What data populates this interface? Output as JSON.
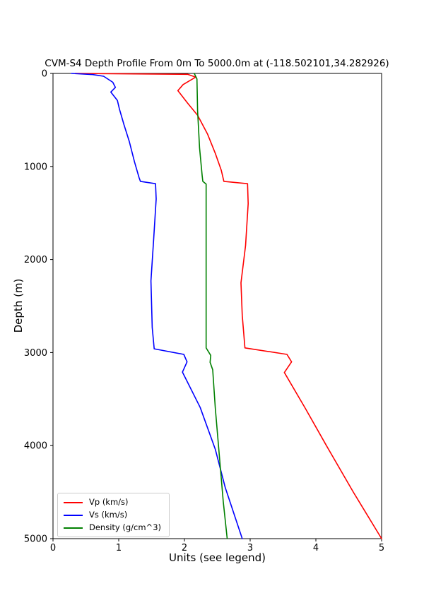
{
  "chart_data": {
    "type": "line",
    "title": "CVM-S4 Depth Profile From 0m To 5000.0m at (-118.502101,34.282926)",
    "xlabel": "Units (see legend)",
    "ylabel": "Depth (m)",
    "x_range": [
      0,
      5
    ],
    "depth_range": [
      0,
      5000
    ],
    "y_axis_inverted": true,
    "grid": false,
    "legend_position": "lower left",
    "x_ticks": [
      "0",
      "1",
      "2",
      "3",
      "4",
      "5"
    ],
    "y_ticks": [
      "0",
      "1000",
      "2000",
      "3000",
      "4000",
      "5000"
    ],
    "axis_color": "#000000",
    "series": [
      {
        "name": "Vp (km/s)",
        "color": "#ff0000",
        "points_format": "[value, depth_m]",
        "points": [
          [
            0.34,
            0
          ],
          [
            2.05,
            10
          ],
          [
            2.17,
            40
          ],
          [
            1.98,
            120
          ],
          [
            1.9,
            185
          ],
          [
            2.05,
            320
          ],
          [
            2.2,
            450
          ],
          [
            2.35,
            650
          ],
          [
            2.47,
            860
          ],
          [
            2.56,
            1040
          ],
          [
            2.6,
            1160
          ],
          [
            2.96,
            1185
          ],
          [
            2.97,
            1400
          ],
          [
            2.93,
            1850
          ],
          [
            2.86,
            2250
          ],
          [
            2.88,
            2600
          ],
          [
            2.92,
            2950
          ],
          [
            3.56,
            3020
          ],
          [
            3.63,
            3100
          ],
          [
            3.52,
            3215
          ],
          [
            3.84,
            3600
          ],
          [
            4.16,
            4000
          ],
          [
            4.57,
            4500
          ],
          [
            5.0,
            5000
          ]
        ]
      },
      {
        "name": "Vs (km/s)",
        "color": "#0000ff",
        "points_format": "[value, depth_m]",
        "points": [
          [
            0.28,
            0
          ],
          [
            0.6,
            12
          ],
          [
            0.77,
            30
          ],
          [
            0.91,
            95
          ],
          [
            0.95,
            150
          ],
          [
            0.88,
            200
          ],
          [
            0.98,
            290
          ],
          [
            1.01,
            380
          ],
          [
            1.08,
            550
          ],
          [
            1.16,
            730
          ],
          [
            1.24,
            950
          ],
          [
            1.31,
            1120
          ],
          [
            1.33,
            1160
          ],
          [
            1.56,
            1185
          ],
          [
            1.57,
            1350
          ],
          [
            1.53,
            1800
          ],
          [
            1.49,
            2230
          ],
          [
            1.51,
            2730
          ],
          [
            1.54,
            2960
          ],
          [
            1.99,
            3020
          ],
          [
            2.04,
            3100
          ],
          [
            1.97,
            3210
          ],
          [
            2.24,
            3590
          ],
          [
            2.47,
            4040
          ],
          [
            2.62,
            4450
          ],
          [
            2.88,
            5000
          ]
        ]
      },
      {
        "name": "Density (g/cm^3)",
        "color": "#008000",
        "points_format": "[value, depth_m]",
        "points": [
          [
            2.15,
            0
          ],
          [
            2.19,
            60
          ],
          [
            2.2,
            400
          ],
          [
            2.23,
            800
          ],
          [
            2.27,
            1100
          ],
          [
            2.28,
            1160
          ],
          [
            2.33,
            1190
          ],
          [
            2.33,
            2950
          ],
          [
            2.4,
            3030
          ],
          [
            2.39,
            3105
          ],
          [
            2.43,
            3185
          ],
          [
            2.47,
            3600
          ],
          [
            2.53,
            4100
          ],
          [
            2.59,
            4600
          ],
          [
            2.65,
            5000
          ]
        ]
      }
    ]
  }
}
